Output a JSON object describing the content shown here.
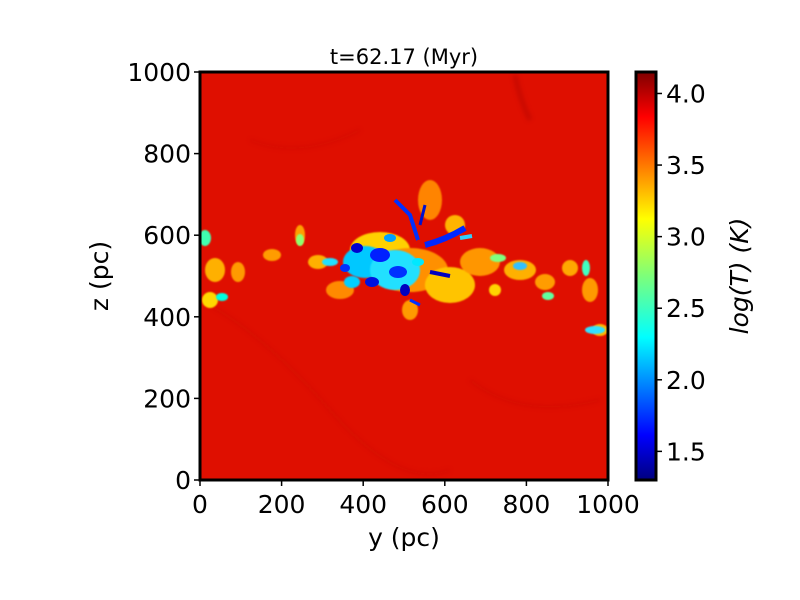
{
  "chart_data": {
    "type": "heatmap",
    "title": "t=62.17 (Myr)",
    "xlabel": "y (pc)",
    "ylabel": "z (pc)",
    "xlim": [
      0,
      1000
    ],
    "ylim": [
      0,
      1000
    ],
    "x_ticks": [
      0,
      200,
      400,
      600,
      800,
      1000
    ],
    "y_ticks": [
      0,
      200,
      400,
      600,
      800,
      1000
    ],
    "colormap": "jet",
    "colorbar": {
      "label": "log(T) (K)",
      "range": [
        1.3,
        4.15
      ],
      "ticks": [
        1.5,
        2.0,
        2.5,
        3.0,
        3.5,
        4.0
      ]
    },
    "background_value": 4.08,
    "features": [
      {
        "name": "cold dense core",
        "y_center": 420,
        "z_center": 530,
        "y_extent": 200,
        "z_extent": 120,
        "value": 1.7
      },
      {
        "name": "cold filament",
        "y_center": 560,
        "z_center": 610,
        "y_extent": 120,
        "z_extent": 80,
        "value": 1.6
      },
      {
        "name": "disk band (warm filaments)",
        "y_center": 500,
        "z_center": 500,
        "y_extent": 1000,
        "z_extent": 200,
        "value": 3.4
      }
    ]
  }
}
